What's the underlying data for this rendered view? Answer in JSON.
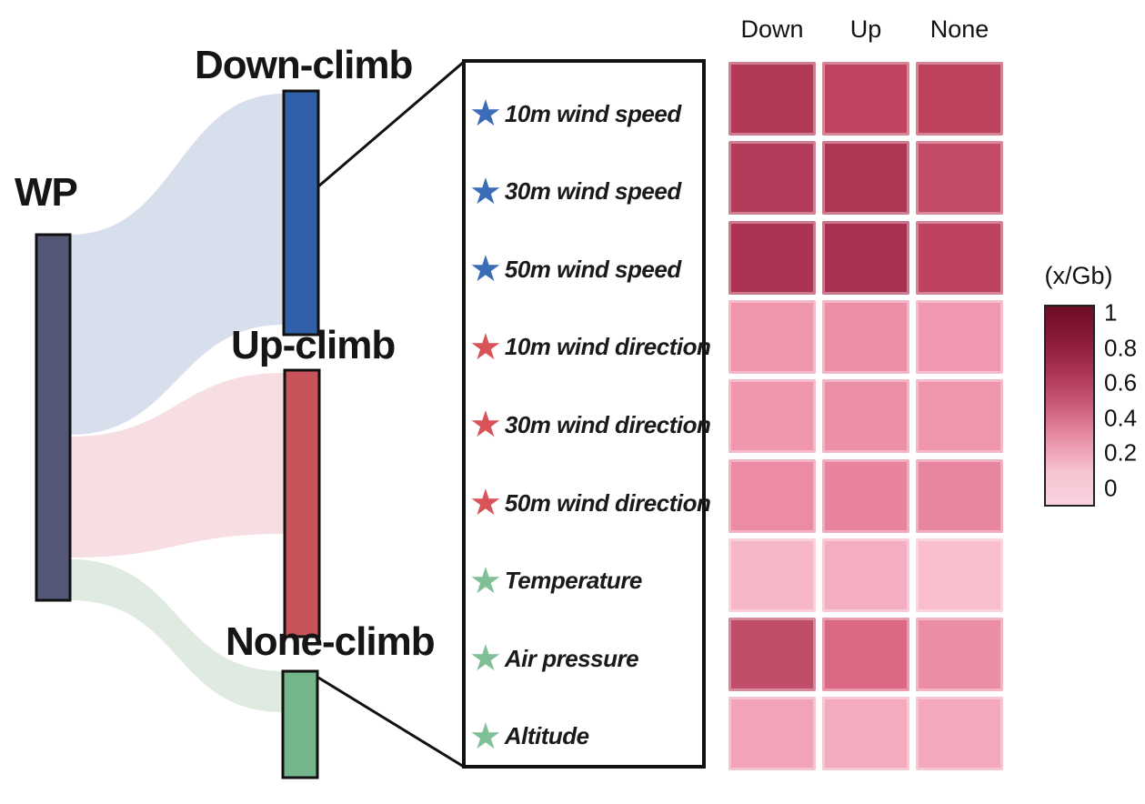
{
  "figure": {
    "background": "#ffffff",
    "text_color": "#1a1a1a"
  },
  "sankey": {
    "source": {
      "label": "WP",
      "color": "#545876"
    },
    "targets": [
      {
        "label": "Down-climb",
        "color": "#3060A8",
        "flow_color": "#D8DFEC"
      },
      {
        "label": "Up-climb",
        "color": "#C8535A",
        "flow_color": "#F7DEE2"
      },
      {
        "label": "None-climb",
        "color": "#75B58B",
        "flow_color": "#DFEAE0"
      }
    ]
  },
  "legend": {
    "star_icon": "★",
    "items": [
      {
        "label": "10m wind speed",
        "star_color": "#3A6CB8",
        "group": "wind-speed"
      },
      {
        "label": "30m wind speed",
        "star_color": "#3A6CB8",
        "group": "wind-speed"
      },
      {
        "label": "50m wind speed",
        "star_color": "#3A6CB8",
        "group": "wind-speed"
      },
      {
        "label": "10m wind direction",
        "star_color": "#D85459",
        "group": "wind-direction"
      },
      {
        "label": "30m wind direction",
        "star_color": "#D85459",
        "group": "wind-direction"
      },
      {
        "label": "50m wind direction",
        "star_color": "#D85459",
        "group": "wind-direction"
      },
      {
        "label": "Temperature",
        "star_color": "#7FC096",
        "group": "other"
      },
      {
        "label": "Air pressure",
        "star_color": "#7FC096",
        "group": "other"
      },
      {
        "label": "Altitude",
        "star_color": "#7FC096",
        "group": "other"
      }
    ]
  },
  "heatmap": {
    "columns": [
      "Down",
      "Up",
      "None"
    ],
    "rows": [
      {
        "label": "10m wind speed",
        "cells": [
          {
            "color": "#B23A57",
            "value": 0.62
          },
          {
            "color": "#C04560",
            "value": 0.55
          },
          {
            "color": "#BD425C",
            "value": 0.57
          }
        ]
      },
      {
        "label": "30m wind speed",
        "cells": [
          {
            "color": "#B43C5B",
            "value": 0.6
          },
          {
            "color": "#B03754",
            "value": 0.64
          },
          {
            "color": "#C44B66",
            "value": 0.52
          }
        ]
      },
      {
        "label": "50m wind speed",
        "cells": [
          {
            "color": "#AC3351",
            "value": 0.68
          },
          {
            "color": "#A93050",
            "value": 0.7
          },
          {
            "color": "#BE4360",
            "value": 0.58
          }
        ]
      },
      {
        "label": "10m wind direction",
        "cells": [
          {
            "color": "#EF96AD",
            "value": 0.23
          },
          {
            "color": "#EC90A8",
            "value": 0.25
          },
          {
            "color": "#F098AF",
            "value": 0.22
          }
        ]
      },
      {
        "label": "30m wind direction",
        "cells": [
          {
            "color": "#F097AE",
            "value": 0.23
          },
          {
            "color": "#EC90A8",
            "value": 0.25
          },
          {
            "color": "#EF95AC",
            "value": 0.23
          }
        ]
      },
      {
        "label": "50m wind direction",
        "cells": [
          {
            "color": "#EB8BA4",
            "value": 0.27
          },
          {
            "color": "#E7839D",
            "value": 0.29
          },
          {
            "color": "#E8869F",
            "value": 0.28
          }
        ]
      },
      {
        "label": "Temperature",
        "cells": [
          {
            "color": "#F6B7C8",
            "value": 0.11
          },
          {
            "color": "#F4AEC1",
            "value": 0.13
          },
          {
            "color": "#F8BECD",
            "value": 0.09
          }
        ]
      },
      {
        "label": "Air pressure",
        "cells": [
          {
            "color": "#C14E68",
            "value": 0.5
          },
          {
            "color": "#DD6883",
            "value": 0.38
          },
          {
            "color": "#EB8EA3",
            "value": 0.28
          }
        ]
      },
      {
        "label": "Altitude",
        "cells": [
          {
            "color": "#F2A3B8",
            "value": 0.17
          },
          {
            "color": "#F4ABBE",
            "value": 0.15
          },
          {
            "color": "#F3A8BC",
            "value": 0.16
          }
        ]
      }
    ]
  },
  "colorbar": {
    "title": "(x/Gb)",
    "ticks": [
      "1",
      "0.8",
      "0.6",
      "0.4",
      "0.2",
      "0"
    ],
    "top_color": "#6C0D24",
    "bottom_color": "#F9D3DE",
    "stops": [
      "#6C0D24",
      "#8B1A37",
      "#AC3453",
      "#CC5C77",
      "#E890A7",
      "#F6C3D1",
      "#F9D3DE"
    ]
  },
  "chart_data": [
    {
      "type": "heatmap",
      "title": "",
      "columns": [
        "Down",
        "Up",
        "None"
      ],
      "rows": [
        "10m wind speed",
        "30m wind speed",
        "50m wind speed",
        "10m wind direction",
        "30m wind direction",
        "50m wind direction",
        "Temperature",
        "Air pressure",
        "Altitude"
      ],
      "values": [
        [
          0.62,
          0.55,
          0.57
        ],
        [
          0.6,
          0.64,
          0.52
        ],
        [
          0.68,
          0.7,
          0.58
        ],
        [
          0.23,
          0.25,
          0.22
        ],
        [
          0.23,
          0.25,
          0.23
        ],
        [
          0.27,
          0.29,
          0.28
        ],
        [
          0.11,
          0.13,
          0.09
        ],
        [
          0.5,
          0.38,
          0.28
        ],
        [
          0.17,
          0.15,
          0.16
        ]
      ],
      "colorbar_label": "(x/Gb)",
      "colorbar_range": [
        0,
        1
      ],
      "colorbar_ticks": [
        0,
        0.2,
        0.4,
        0.6,
        0.8,
        1
      ],
      "legend_position": "left-box"
    },
    {
      "type": "sankey",
      "source": "WP",
      "links": [
        {
          "from": "WP",
          "to": "Down-climb"
        },
        {
          "from": "WP",
          "to": "Up-climb"
        },
        {
          "from": "WP",
          "to": "None-climb"
        }
      ]
    }
  ]
}
